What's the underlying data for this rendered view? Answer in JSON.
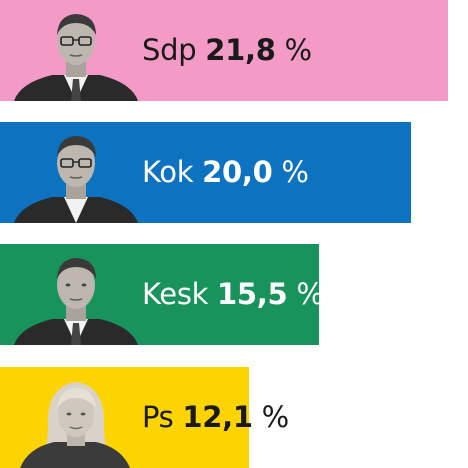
{
  "chart_data": {
    "type": "bar",
    "orientation": "horizontal",
    "unit": "%",
    "categories": [
      "Sdp",
      "Kok",
      "Kesk",
      "Ps"
    ],
    "values": [
      21.8,
      20.0,
      15.5,
      12.1
    ],
    "value_labels": [
      "21,8",
      "20,0",
      "15,5",
      "12,1"
    ],
    "colors": [
      "#f49ac6",
      "#0d72c0",
      "#19935c",
      "#fdd400"
    ],
    "label_colors": [
      "#1a1a1a",
      "#ffffff",
      "#ffffff",
      "#1a1a1a"
    ],
    "title": "",
    "xlabel": "",
    "ylabel": "",
    "legend": "none",
    "grid": false,
    "icons": [
      "politician-portrait-icon",
      "politician-portrait-icon",
      "politician-portrait-icon",
      "politician-portrait-icon"
    ]
  }
}
